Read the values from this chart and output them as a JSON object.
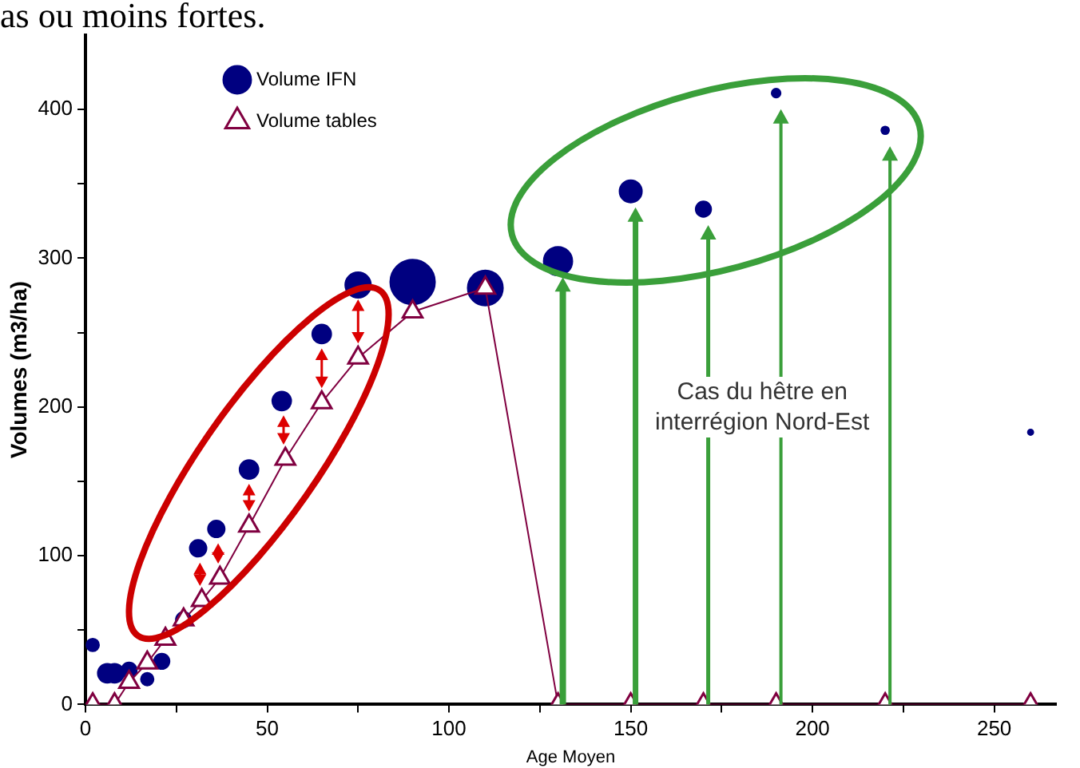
{
  "chart_data": {
    "type": "bubble",
    "xlabel": "Age Moyen",
    "ylabel": "Volumes (m3/ha)",
    "annotations": [
      "as ou moins fortes.",
      "Cas du hêtre en\ninterrégion Nord-Est"
    ],
    "xlim": [
      0,
      267
    ],
    "xticks": [
      0,
      {
        "value": 25,
        "label": null
      },
      50,
      {
        "value": 75,
        "label": null
      },
      100,
      {
        "value": 125,
        "label": null
      },
      150,
      {
        "value": 175,
        "label": null
      },
      200,
      {
        "value": 225,
        "label": null
      },
      250
    ],
    "ylim": [
      0,
      450
    ],
    "yticks": [
      0,
      {
        "value": 50,
        "label": null
      },
      100,
      {
        "value": 150,
        "label": null
      },
      200,
      {
        "value": 250,
        "label": null
      },
      300,
      {
        "value": 350,
        "label": null
      },
      400
    ],
    "grid": false,
    "legend": "top left",
    "series": [
      {
        "name": "Volume IFN",
        "type": "bubble",
        "marker": "circle",
        "color": "#000080",
        "x": [
          2,
          6,
          8,
          12,
          17,
          21,
          27,
          31,
          36,
          45,
          54,
          65,
          75,
          90,
          110,
          130,
          150,
          170,
          190,
          220,
          260
        ],
        "values": [
          40,
          21,
          21,
          23,
          17,
          29,
          57,
          105,
          118,
          158,
          204,
          249,
          282,
          284,
          280,
          298,
          345,
          333,
          411,
          386,
          183
        ],
        "sizes": [
          0.08,
          0.18,
          0.18,
          0.12,
          0.08,
          0.12,
          0.12,
          0.14,
          0.14,
          0.18,
          0.18,
          0.18,
          0.33,
          1,
          0.62,
          0.41,
          0.25,
          0.12,
          0.04,
          0.03,
          0.015
        ]
      },
      {
        "name": "Volume tables",
        "type": "line",
        "marker": "triangle",
        "line_style": "solid",
        "color": "#800040",
        "x": [
          2,
          8,
          12,
          17,
          22,
          27,
          32,
          37,
          45,
          55,
          65,
          75,
          90,
          110,
          130,
          150,
          170,
          190,
          220,
          260
        ],
        "values": [
          0,
          0,
          15,
          28,
          44,
          57,
          70,
          85,
          120,
          165,
          203,
          233,
          264,
          280,
          0,
          0,
          0,
          0,
          0,
          0
        ]
      }
    ]
  }
}
